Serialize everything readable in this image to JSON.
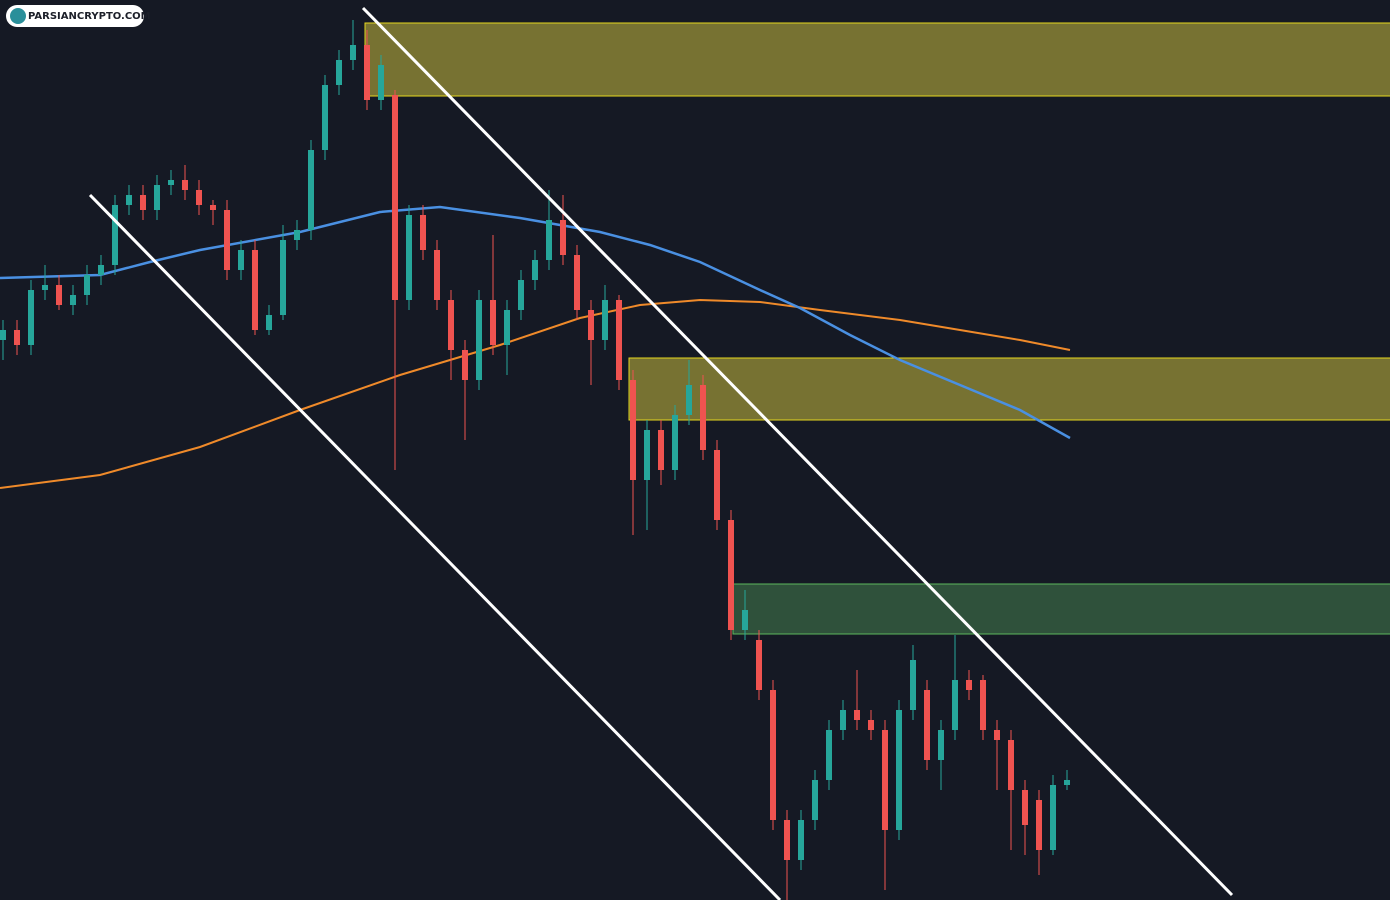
{
  "watermark": {
    "text": "PARSIANCRYPTO.COM"
  }
}
